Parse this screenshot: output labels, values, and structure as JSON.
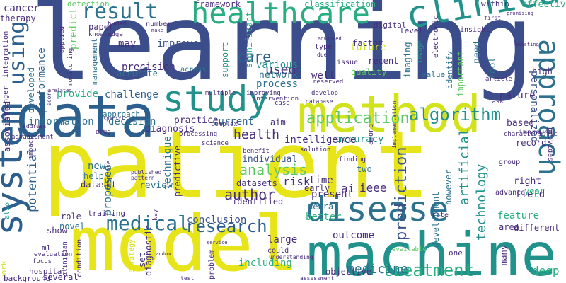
{
  "palette": {
    "dark_purple": "#472d7b",
    "indigo": "#3b528b",
    "blue": "#2c728e",
    "teal": "#21918c",
    "green": "#28ae80",
    "light_green": "#5ec962",
    "lime": "#addc30",
    "yellow": "#e7e419"
  },
  "words": [
    {
      "t": "learning",
      "c": "#3b4d8a"
    },
    {
      "t": "patient",
      "c": "#e7e419"
    },
    {
      "t": "model",
      "c": "#e7e419"
    },
    {
      "t": "machine",
      "c": "#21918c"
    },
    {
      "t": "data",
      "c": "#2c5f8e"
    },
    {
      "t": "method",
      "c": "#d2e21b"
    },
    {
      "t": "healthcare",
      "c": "#28ae80"
    },
    {
      "t": "clinical",
      "c": "#21918c"
    },
    {
      "t": "study",
      "c": "#21918c"
    },
    {
      "t": "system",
      "c": "#2c5f8e"
    },
    {
      "t": "disease",
      "c": "#2c728e"
    },
    {
      "t": "approach",
      "c": "#2c728e"
    },
    {
      "t": "medical",
      "c": "#2c728e"
    },
    {
      "t": "result",
      "c": "#2c728e"
    },
    {
      "t": "using",
      "c": "#2c5f8e"
    },
    {
      "t": "algorithm",
      "c": "#21918c"
    },
    {
      "t": "application",
      "c": "#5ec962"
    },
    {
      "t": "treatment",
      "c": "#28ae80"
    },
    {
      "t": "research",
      "c": "#2c5f8e"
    },
    {
      "t": "analysis",
      "c": "#5ec962"
    },
    {
      "t": "health",
      "c": "#472d7b"
    },
    {
      "t": "medicine",
      "c": "#2c728e"
    },
    {
      "t": "care",
      "c": "#2c5f8e"
    },
    {
      "t": "author",
      "c": "#472d7b"
    },
    {
      "t": "prediction",
      "c": "#3b528b"
    },
    {
      "t": "artificial",
      "c": "#21918c"
    },
    {
      "t": "technology",
      "c": "#21918c"
    },
    {
      "t": "potential",
      "c": "#2c5f8e"
    },
    {
      "t": "used",
      "c": "#472d7b"
    },
    {
      "t": "performance",
      "c": "#2c5f8e"
    },
    {
      "t": "information",
      "c": "#2c728e"
    },
    {
      "t": "decision",
      "c": "#2c728e"
    },
    {
      "t": "process",
      "c": "#2c728e"
    },
    {
      "t": "network",
      "c": "#2c728e"
    },
    {
      "t": "precision",
      "c": "#472d7b"
    },
    {
      "t": "intelligence",
      "c": "#472d7b"
    },
    {
      "t": "diagnosis",
      "c": "#472d7b"
    },
    {
      "t": "outcome",
      "c": "#472d7b"
    },
    {
      "t": "conclusion",
      "c": "#3b528b"
    },
    {
      "t": "including",
      "c": "#28ae80"
    },
    {
      "t": "accuracy",
      "c": "#21918c"
    },
    {
      "t": "individual",
      "c": "#3b528b"
    },
    {
      "t": "technique",
      "c": "#2c728e"
    },
    {
      "t": "development",
      "c": "#2c728e"
    },
    {
      "t": "feature",
      "c": "#28ae80"
    },
    {
      "t": "deep",
      "c": "#28ae80"
    },
    {
      "t": "personalized",
      "c": "#3b528b"
    },
    {
      "t": "future",
      "c": "#d2e21b"
    },
    {
      "t": "improve",
      "c": "#3b528b"
    },
    {
      "t": "current",
      "c": "#2c5f8e"
    },
    {
      "t": "challenge",
      "c": "#2c5f8e"
    },
    {
      "t": "provide",
      "c": "#28ae80"
    },
    {
      "t": "significant",
      "c": "#28ae80"
    },
    {
      "t": "support",
      "c": "#21918c"
    },
    {
      "t": "various",
      "c": "#21918c"
    },
    {
      "t": "practice",
      "c": "#472d7b"
    },
    {
      "t": "review",
      "c": "#2c728e"
    },
    {
      "t": "ieee",
      "c": "#472d7b"
    },
    {
      "t": "ai",
      "c": "#472d7b"
    },
    {
      "t": "predictive",
      "c": "#472d7b"
    },
    {
      "t": "proposed",
      "c": "#2c728e"
    },
    {
      "t": "risk",
      "c": "#472d7b"
    },
    {
      "t": "time",
      "c": "#472d7b"
    },
    {
      "t": "field",
      "c": "#472d7b"
    },
    {
      "t": "area",
      "c": "#472d7b"
    },
    {
      "t": "different",
      "c": "#472d7b"
    },
    {
      "t": "present",
      "c": "#472d7b"
    },
    {
      "t": "better",
      "c": "#28ae80"
    },
    {
      "t": "aim",
      "c": "#472d7b"
    },
    {
      "t": "based",
      "c": "#472d7b"
    },
    {
      "t": "need",
      "c": "#2c728e"
    },
    {
      "t": "tool",
      "c": "#2c728e"
    },
    {
      "t": "imaging",
      "c": "#2c728e"
    },
    {
      "t": "image",
      "c": "#21918c"
    },
    {
      "t": "recent",
      "c": "#472d7b"
    },
    {
      "t": "paper",
      "c": "#472d7b"
    },
    {
      "t": "may",
      "c": "#472d7b"
    },
    {
      "t": "new",
      "c": "#2c728e"
    },
    {
      "t": "right",
      "c": "#472d7b"
    },
    {
      "t": "record",
      "c": "#472d7b"
    },
    {
      "t": "year",
      "c": "#28ae80"
    },
    {
      "t": "high",
      "c": "#472d7b"
    },
    {
      "t": "nature",
      "c": "#472d7b"
    },
    {
      "t": "however",
      "c": "#2c728e"
    },
    {
      "t": "identify",
      "c": "#2c728e"
    },
    {
      "t": "important",
      "c": "#5ec962"
    },
    {
      "t": "quality",
      "c": "#5ec962"
    },
    {
      "t": "value",
      "c": "#2c728e"
    },
    {
      "t": "factor",
      "c": "#472d7b"
    },
    {
      "t": "well",
      "c": "#472d7b"
    },
    {
      "t": "therapy",
      "c": "#472d7b"
    },
    {
      "t": "cancer",
      "c": "#472d7b"
    },
    {
      "t": "effective",
      "c": "#28ae80"
    },
    {
      "t": "framework",
      "c": "#472d7b"
    },
    {
      "t": "classification",
      "c": "#28ae80"
    },
    {
      "t": "detection",
      "c": "#5ec962"
    },
    {
      "t": "within",
      "c": "#472d7b"
    },
    {
      "t": "digital",
      "c": "#472d7b"
    },
    {
      "t": "level",
      "c": "#472d7b"
    },
    {
      "t": "insight",
      "c": "#472d7b"
    },
    {
      "t": "issue",
      "c": "#472d7b"
    },
    {
      "t": "type",
      "c": "#472d7b"
    },
    {
      "t": "electronic",
      "c": "#472d7b"
    },
    {
      "t": "accurate",
      "c": "#2c728e"
    },
    {
      "t": "across",
      "c": "#2c728e"
    },
    {
      "t": "predict",
      "c": "#5ec962"
    },
    {
      "t": "management",
      "c": "#2c728e"
    },
    {
      "t": "developed",
      "c": "#2c728e"
    },
    {
      "t": "approach",
      "c": "#2c728e"
    },
    {
      "t": "identified",
      "c": "#472d7b"
    },
    {
      "t": "datasets",
      "c": "#472d7b"
    },
    {
      "t": "neural",
      "c": "#2c728e"
    },
    {
      "t": "early",
      "c": "#472d7b"
    },
    {
      "t": "two",
      "c": "#2c728e"
    },
    {
      "t": "among",
      "c": "#472d7b"
    },
    {
      "t": "dataset",
      "c": "#472d7b"
    },
    {
      "t": "help",
      "c": "#2c728e"
    },
    {
      "t": "novel",
      "c": "#2c728e"
    },
    {
      "t": "role",
      "c": "#472d7b"
    },
    {
      "t": "show",
      "c": "#472d7b"
    },
    {
      "t": "ml",
      "c": "#472d7b"
    },
    {
      "t": "set",
      "c": "#472d7b"
    },
    {
      "t": "large",
      "c": "#472d7b"
    },
    {
      "t": "could",
      "c": "#472d7b"
    },
    {
      "t": "problem",
      "c": "#472d7b"
    },
    {
      "t": "objective",
      "c": "#472d7b"
    },
    {
      "t": "many",
      "c": "#472d7b"
    },
    {
      "t": "one",
      "c": "#472d7b"
    },
    {
      "t": "rate",
      "c": "#472d7b"
    },
    {
      "t": "advance",
      "c": "#472d7b"
    },
    {
      "t": "group",
      "c": "#472d7b"
    },
    {
      "t": "improved",
      "c": "#472d7b"
    },
    {
      "t": "training",
      "c": "#472d7b"
    },
    {
      "t": "diagnostic",
      "c": "#472d7b"
    },
    {
      "t": "strategy",
      "c": "#d2e21b"
    },
    {
      "t": "condition",
      "c": "#472d7b"
    },
    {
      "t": "hospital",
      "c": "#472d7b"
    },
    {
      "t": "several",
      "c": "#472d7b"
    },
    {
      "t": "work",
      "c": "#d2e21b"
    },
    {
      "t": "background",
      "c": "#472d7b"
    },
    {
      "t": "associated",
      "c": "#472d7b"
    },
    {
      "t": "also",
      "c": "#21918c"
    },
    {
      "t": "springer",
      "c": "#472d7b"
    },
    {
      "t": "integration",
      "c": "#472d7b"
    },
    {
      "t": "knowledge",
      "c": "#472d7b"
    },
    {
      "t": "human",
      "c": "#472d7b"
    },
    {
      "t": "number",
      "c": "#472d7b"
    },
    {
      "t": "applied",
      "c": "#472d7b"
    },
    {
      "t": "monitoring",
      "c": "#472d7b"
    },
    {
      "t": "processing",
      "c": "#472d7b"
    },
    {
      "t": "drug",
      "c": "#472d7b"
    },
    {
      "t": "complex",
      "c": "#472d7b"
    },
    {
      "t": "science",
      "c": "#472d7b"
    },
    {
      "t": "intervention",
      "c": "#472d7b"
    },
    {
      "t": "develop",
      "c": "#472d7b"
    },
    {
      "t": "multiple",
      "c": "#472d7b"
    },
    {
      "t": "case",
      "c": "#472d7b"
    },
    {
      "t": "benefit",
      "c": "#472d7b"
    },
    {
      "t": "finding",
      "c": "#472d7b"
    },
    {
      "t": "solution",
      "c": "#472d7b"
    },
    {
      "t": "reserved",
      "c": "#472d7b"
    },
    {
      "t": "article",
      "c": "#472d7b"
    },
    {
      "t": "task",
      "c": "#472d7b"
    },
    {
      "t": "available",
      "c": "#5ec962"
    },
    {
      "t": "response",
      "c": "#472d7b"
    },
    {
      "t": "key",
      "c": "#472d7b"
    },
    {
      "t": "evaluation",
      "c": "#472d7b"
    },
    {
      "t": "focus",
      "c": "#472d7b"
    },
    {
      "t": "clinician",
      "c": "#472d7b"
    },
    {
      "t": "advancement",
      "c": "#472d7b"
    },
    {
      "t": "impact",
      "c": "#472d7b"
    },
    {
      "t": "address",
      "c": "#472d7b"
    },
    {
      "t": "score",
      "c": "#472d7b"
    },
    {
      "t": "provides",
      "c": "#472d7b"
    },
    {
      "t": "characteristic",
      "c": "#472d7b"
    },
    {
      "t": "assessment",
      "c": "#472d7b"
    },
    {
      "t": "understanding",
      "c": "#472d7b"
    },
    {
      "t": "test",
      "c": "#472d7b"
    },
    {
      "t": "pattern",
      "c": "#472d7b"
    },
    {
      "t": "published",
      "c": "#472d7b"
    },
    {
      "t": "database",
      "c": "#472d7b"
    },
    {
      "t": "implementation",
      "c": "#472d7b"
    },
    {
      "t": "improving",
      "c": "#472d7b"
    },
    {
      "t": "due",
      "c": "#472d7b"
    },
    {
      "t": "first",
      "c": "#472d7b"
    },
    {
      "t": "make",
      "c": "#472d7b"
    },
    {
      "t": "existing",
      "c": "#472d7b"
    },
    {
      "t": "promising",
      "c": "#472d7b"
    },
    {
      "t": "advanced",
      "c": "#472d7b"
    },
    {
      "t": "related",
      "c": "#472d7b"
    },
    {
      "t": "specific",
      "c": "#472d7b"
    },
    {
      "t": "service",
      "c": "#472d7b"
    },
    {
      "t": "random",
      "c": "#472d7b"
    },
    {
      "t": "potential",
      "c": "#472d7b"
    }
  ]
}
